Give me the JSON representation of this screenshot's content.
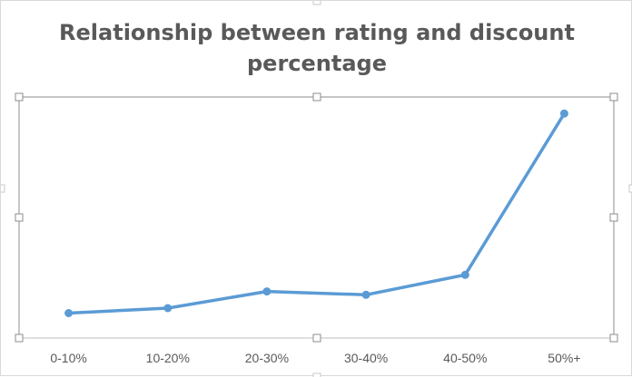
{
  "chart_data": {
    "type": "line",
    "title_lines": [
      "Relationship between rating and discount",
      "percentage"
    ],
    "categories": [
      "0-10%",
      "10-20%",
      "20-30%",
      "30-40%",
      "40-50%",
      "50%+"
    ],
    "series": [
      {
        "values": [
          4.05,
          4.08,
          4.18,
          4.16,
          4.28,
          5.25
        ]
      }
    ],
    "xlabel": "",
    "ylabel": "",
    "ylim": [
      3.9,
      5.35
    ],
    "grid": false,
    "legend": "none",
    "colors": {
      "line": "#5b9bd5",
      "title": "#595959",
      "axis": "#bfbfbf"
    }
  }
}
